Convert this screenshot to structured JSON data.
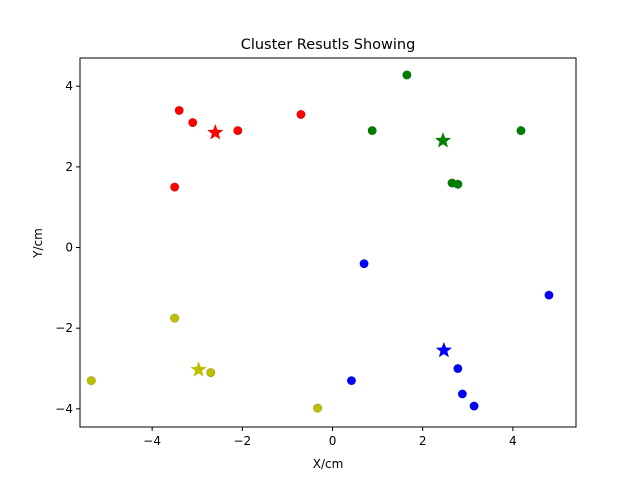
{
  "chart_data": {
    "type": "scatter",
    "title": "Cluster Resutls Showing",
    "xlabel": "X/cm",
    "ylabel": "Y/cm",
    "xlim": [
      -5.6,
      5.4
    ],
    "ylim": [
      -4.45,
      4.7
    ],
    "xticks": [
      -4,
      -2,
      0,
      2,
      4
    ],
    "yticks": [
      -4,
      -2,
      0,
      2,
      4
    ],
    "grid": false,
    "series": [
      {
        "color": "#ff0000",
        "points": [
          [
            -3.4,
            3.4
          ],
          [
            -3.1,
            3.1
          ],
          [
            -2.1,
            2.9
          ],
          [
            -0.7,
            3.3
          ],
          [
            -3.5,
            1.5
          ]
        ],
        "centroid": [
          -2.6,
          2.85
        ]
      },
      {
        "color": "#008000",
        "points": [
          [
            1.65,
            4.28
          ],
          [
            0.88,
            2.9
          ],
          [
            4.18,
            2.9
          ],
          [
            2.65,
            1.6
          ],
          [
            2.78,
            1.57
          ]
        ],
        "centroid": [
          2.45,
          2.65
        ]
      },
      {
        "color": "#0000ff",
        "points": [
          [
            0.7,
            -0.4
          ],
          [
            4.8,
            -1.18
          ],
          [
            2.78,
            -3.0
          ],
          [
            0.42,
            -3.3
          ],
          [
            2.88,
            -3.63
          ],
          [
            3.14,
            -3.93
          ]
        ],
        "centroid": [
          2.47,
          -2.55
        ]
      },
      {
        "color": "#bfbf00",
        "points": [
          [
            -3.5,
            -1.75
          ],
          [
            -5.35,
            -3.3
          ],
          [
            -2.7,
            -3.1
          ],
          [
            -0.33,
            -3.98
          ]
        ],
        "centroid": [
          -2.97,
          -3.03
        ]
      }
    ]
  }
}
